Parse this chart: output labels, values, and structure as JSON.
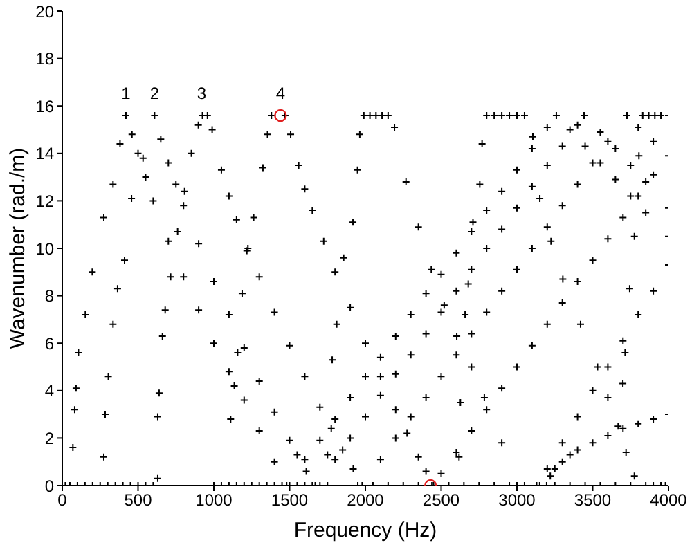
{
  "chart_data": {
    "type": "scatter",
    "xlabel": "Frequency (Hz)",
    "ylabel": "Wavenumber (rad./m)",
    "xlim": [
      0,
      4000
    ],
    "ylim": [
      0,
      20
    ],
    "xticks": [
      0,
      500,
      1000,
      1500,
      2000,
      2500,
      3000,
      3500,
      4000
    ],
    "yticks": [
      0,
      2,
      4,
      6,
      8,
      10,
      12,
      14,
      16,
      18,
      20
    ],
    "grid": false,
    "legend": false,
    "marker": "cross",
    "annotations": [
      {
        "text": "1",
        "x": 420,
        "y": 15.6
      },
      {
        "text": "2",
        "x": 609,
        "y": 15.6
      },
      {
        "text": "3",
        "x": 920,
        "y": 15.6
      },
      {
        "text": "4",
        "x": 1440,
        "y": 15.6
      }
    ],
    "series": [
      {
        "color": "#000000",
        "x": [
          70,
          82,
          91,
          107,
          152,
          198,
          274,
          335,
          381,
          420,
          460,
          500,
          550,
          600,
          700,
          800,
          900,
          1000,
          1100,
          1200,
          1300,
          1400,
          1480
        ],
        "values": [
          1.6,
          3.2,
          4.1,
          5.6,
          7.2,
          9.0,
          11.3,
          12.7,
          14.4,
          15.6,
          14.8,
          14.0,
          13.0,
          12.0,
          10.3,
          8.8,
          7.4,
          6.0,
          4.8,
          3.6,
          2.3,
          1.0,
          0
        ]
      },
      {
        "color": "#000000",
        "x": [
          274,
          283,
          304,
          335,
          365,
          411,
          457,
          533,
          609,
          650,
          700,
          750,
          800,
          900,
          1000,
          1100,
          1200,
          1300,
          1400,
          1500,
          1550,
          1610,
          1670
        ],
        "values": [
          1.2,
          3.0,
          4.6,
          6.8,
          8.3,
          9.5,
          12.1,
          13.8,
          15.6,
          14.6,
          13.6,
          12.7,
          11.8,
          10.2,
          8.6,
          7.2,
          5.8,
          4.4,
          3.1,
          1.9,
          1.3,
          0.6,
          0
        ]
      },
      {
        "color": "#000000",
        "x": [
          630,
          630,
          639,
          661,
          679,
          715,
          761,
          807,
          852,
          898,
          925,
          958,
          989,
          1050,
          1100,
          1150,
          1225,
          1300,
          1400,
          1500,
          1600,
          1700,
          1775,
          1850,
          1920,
          1980
        ],
        "values": [
          0.3,
          2.9,
          3.9,
          6.3,
          7.4,
          8.8,
          10.7,
          12.4,
          14.0,
          15.2,
          15.6,
          15.6,
          15.0,
          13.3,
          12.2,
          11.2,
          10.0,
          8.8,
          7.3,
          5.9,
          4.6,
          3.3,
          2.4,
          1.5,
          0.7,
          0
        ]
      },
      {
        "color": "#000000",
        "x": [
          1111,
          1135,
          1157,
          1187,
          1218,
          1263,
          1324,
          1354,
          1380,
          1470,
          1507,
          1560,
          1600,
          1650,
          1725,
          1800,
          1900,
          2000,
          2100,
          2200,
          2275,
          2350,
          2400,
          2440
        ],
        "values": [
          2.8,
          4.2,
          5.6,
          8.1,
          9.9,
          11.3,
          13.4,
          14.8,
          15.6,
          15.6,
          14.8,
          13.5,
          12.5,
          11.6,
          10.3,
          9.0,
          7.5,
          6.0,
          4.6,
          3.2,
          2.2,
          1.2,
          0.6,
          0
        ]
      },
      {
        "color": "#000000",
        "x": [
          1750,
          1781,
          1811,
          1857,
          1918,
          1948,
          1963,
          1990,
          2030,
          2070,
          2110,
          2150,
          2192,
          2268,
          2350,
          2435,
          2520,
          2603,
          2700,
          2785,
          2900,
          3000
        ],
        "values": [
          1.3,
          5.3,
          6.8,
          9.6,
          11.1,
          13.3,
          14.8,
          15.6,
          15.6,
          15.6,
          15.6,
          15.6,
          15.1,
          12.8,
          10.9,
          9.1,
          7.6,
          6.3,
          5.0,
          3.7,
          1.8,
          0
        ]
      },
      {
        "color": "#000000",
        "x": [
          2618,
          2627,
          2658,
          2679,
          2710,
          2755,
          2770,
          2800,
          2850,
          2900,
          2950,
          3000,
          3050,
          3105,
          3151,
          3225,
          3303,
          3420,
          3532,
          3600,
          3668,
          3720,
          3775
        ],
        "values": [
          1.2,
          3.5,
          7.2,
          8.5,
          11.1,
          12.7,
          14.4,
          15.6,
          15.6,
          15.6,
          15.6,
          15.6,
          15.6,
          14.7,
          12.1,
          10.3,
          8.7,
          6.8,
          5.0,
          3.7,
          2.5,
          1.4,
          0.4
        ]
      },
      {
        "color": "#000000",
        "x": [
          3699,
          3714,
          3744,
          3775,
          3805,
          3830,
          3870,
          3910,
          3950,
          4000
        ],
        "values": [
          4.3,
          5.6,
          8.3,
          10.5,
          13.9,
          15.6,
          15.6,
          15.6,
          15.6,
          15.6
        ]
      },
      {
        "color": "#000000",
        "x": [
          1480,
          1600,
          1700,
          1800,
          1900,
          2000,
          2100,
          2200,
          2300,
          2400,
          2500,
          2600,
          2700,
          2800,
          2900,
          3000,
          3100,
          3200,
          3260,
          3350,
          3450,
          3550,
          3650,
          3750,
          3850,
          4000
        ],
        "values": [
          0,
          1.1,
          1.9,
          2.8,
          3.7,
          4.6,
          5.4,
          6.3,
          7.2,
          8.1,
          8.9,
          9.8,
          10.7,
          11.6,
          12.4,
          13.3,
          14.2,
          15.1,
          15.6,
          15.0,
          14.3,
          13.6,
          12.9,
          12.2,
          11.5,
          10.5
        ]
      },
      {
        "color": "#000000",
        "x": [
          1670,
          1800,
          1900,
          2000,
          2100,
          2200,
          2300,
          2400,
          2500,
          2600,
          2700,
          2800,
          2900,
          3000,
          3100,
          3200,
          3300,
          3400,
          3443,
          3550,
          3650,
          3750,
          3850,
          4000
        ],
        "values": [
          0,
          1.1,
          2.0,
          2.9,
          3.8,
          4.7,
          5.5,
          6.4,
          7.3,
          8.2,
          9.1,
          10.0,
          10.8,
          11.7,
          12.6,
          13.5,
          14.3,
          15.2,
          15.6,
          14.9,
          14.2,
          13.5,
          12.8,
          11.7
        ]
      },
      {
        "color": "#000000",
        "x": [
          1980,
          2100,
          2200,
          2300,
          2400,
          2500,
          2600,
          2700,
          2800,
          2900,
          3000,
          3100,
          3200,
          3300,
          3400,
          3500,
          3600,
          3726,
          3800,
          3900,
          4000
        ],
        "values": [
          0,
          1.1,
          2.0,
          2.9,
          3.7,
          4.6,
          5.5,
          6.4,
          7.3,
          8.2,
          9.1,
          10.0,
          10.9,
          11.8,
          12.7,
          13.6,
          14.5,
          15.6,
          15.1,
          14.5,
          13.9
        ]
      },
      {
        "color": "#000000",
        "x": [
          2440,
          2500,
          2600,
          2700,
          2800,
          2900,
          3000,
          3100,
          3200,
          3300,
          3400,
          3500,
          3600,
          3700,
          3800,
          3900
        ],
        "values": [
          0,
          0.5,
          1.4,
          2.3,
          3.2,
          4.1,
          5.0,
          5.9,
          6.8,
          7.7,
          8.6,
          9.5,
          10.4,
          11.3,
          12.2,
          13.1
        ]
      },
      {
        "color": "#000000",
        "x": [
          3130,
          3200,
          3300,
          3400,
          3500,
          3600,
          3700,
          3800,
          3900,
          4000
        ],
        "values": [
          0,
          0.7,
          1.8,
          2.9,
          4.0,
          5.0,
          6.1,
          7.2,
          8.2,
          9.3
        ]
      },
      {
        "color": "#000000",
        "x": [
          3196,
          3220,
          3250,
          3300,
          3350,
          3400,
          3500,
          3600,
          3700,
          3800,
          3900,
          4000
        ],
        "values": [
          0,
          0.4,
          0.7,
          1.0,
          1.3,
          1.5,
          1.8,
          2.1,
          2.4,
          2.6,
          2.8,
          3.0
        ]
      },
      {
        "color": "#000000",
        "x": [
          20,
          50,
          100,
          150,
          200,
          250,
          300,
          350,
          400,
          450,
          500,
          550,
          600,
          1000,
          1050,
          1100,
          1150,
          1200,
          1250,
          1300,
          1350,
          1400,
          1450,
          1500,
          1550,
          1600,
          1650,
          1700,
          1750,
          1950,
          2050,
          2150,
          2250,
          2350,
          2450,
          2550,
          2650,
          2750,
          2850,
          2950,
          3050,
          3150,
          3250,
          3350,
          3450,
          3550,
          3650,
          3750,
          3850,
          3900,
          3950,
          3980
        ],
        "values": [
          0,
          0,
          0,
          0,
          0,
          0,
          0,
          0,
          0,
          0,
          0,
          0,
          0,
          0,
          0,
          0,
          0,
          0,
          0,
          0,
          0,
          0,
          0,
          0,
          0,
          0,
          0,
          0,
          0,
          0,
          0,
          0,
          0,
          0,
          0,
          0,
          0,
          0,
          0,
          0,
          0,
          0,
          0,
          0,
          0,
          0,
          0,
          0,
          0,
          0,
          0,
          0
        ]
      },
      {
        "color": "#e02020",
        "marker": "circle",
        "x": [
          1440,
          2430
        ],
        "values": [
          15.6,
          0
        ]
      }
    ]
  }
}
